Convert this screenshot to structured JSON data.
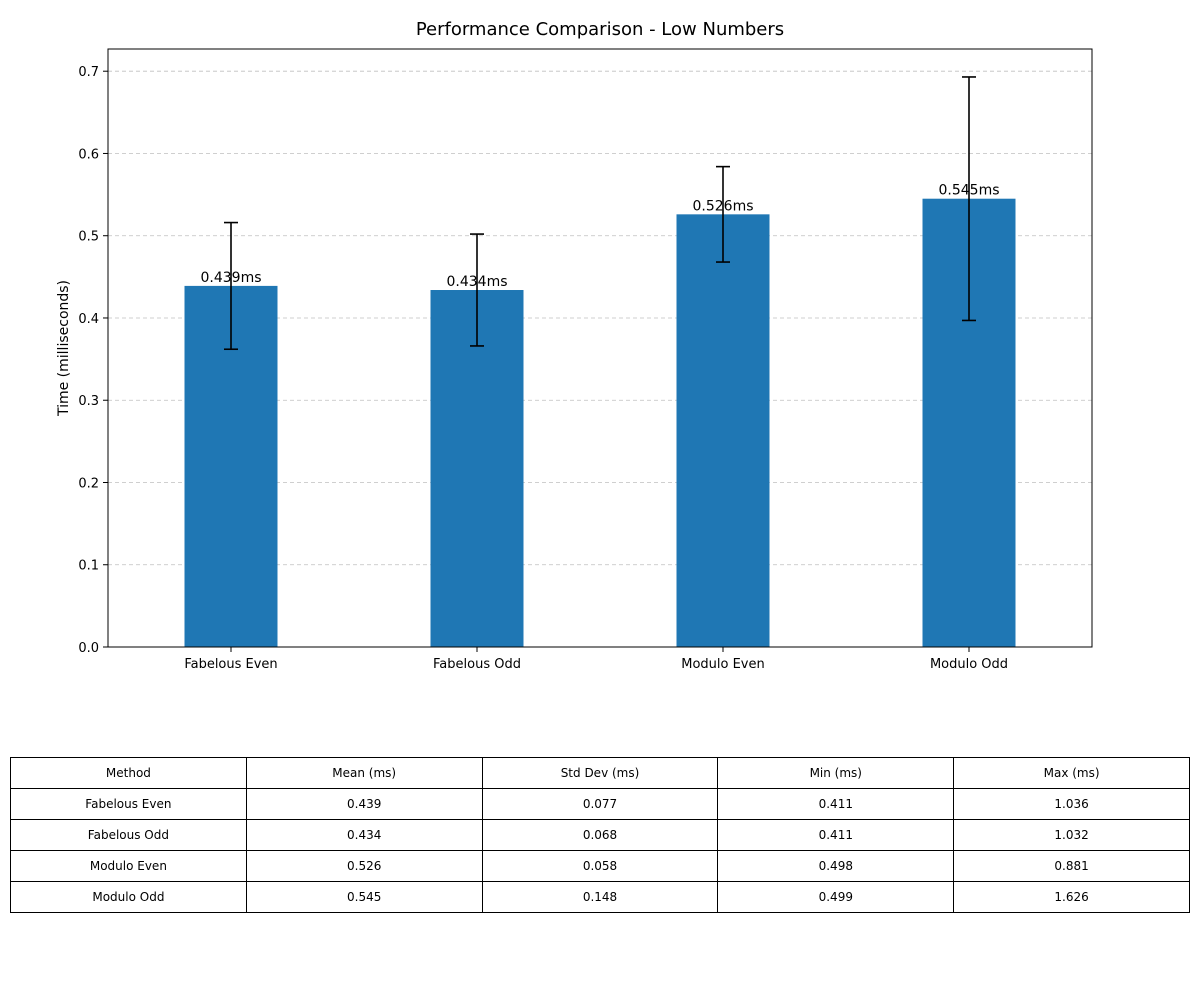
{
  "chart_data": {
    "type": "bar",
    "title": "Performance Comparison - Low Numbers",
    "xlabel": "",
    "ylabel": "Time (milliseconds)",
    "ylim": [
      0,
      0.727
    ],
    "yticks": [
      0.0,
      0.1,
      0.2,
      0.3,
      0.4,
      0.5,
      0.6,
      0.7
    ],
    "ytick_labels": [
      "0.0",
      "0.1",
      "0.2",
      "0.3",
      "0.4",
      "0.5",
      "0.6",
      "0.7"
    ],
    "grid": "horizontal dashed",
    "categories": [
      "Fabelous Even",
      "Fabelous Odd",
      "Modulo Even",
      "Modulo Odd"
    ],
    "values": [
      0.439,
      0.434,
      0.526,
      0.545
    ],
    "error": [
      0.077,
      0.068,
      0.058,
      0.148
    ],
    "value_labels": [
      "0.439ms",
      "0.434ms",
      "0.526ms",
      "0.545ms"
    ],
    "bar_color": "#1f77b4"
  },
  "table": {
    "headers": [
      "Method",
      "Mean (ms)",
      "Std Dev (ms)",
      "Min (ms)",
      "Max (ms)"
    ],
    "rows": [
      [
        "Fabelous Even",
        "0.439",
        "0.077",
        "0.411",
        "1.036"
      ],
      [
        "Fabelous Odd",
        "0.434",
        "0.068",
        "0.411",
        "1.032"
      ],
      [
        "Modulo Even",
        "0.526",
        "0.058",
        "0.498",
        "0.881"
      ],
      [
        "Modulo Odd",
        "0.545",
        "0.148",
        "0.499",
        "1.626"
      ]
    ]
  }
}
